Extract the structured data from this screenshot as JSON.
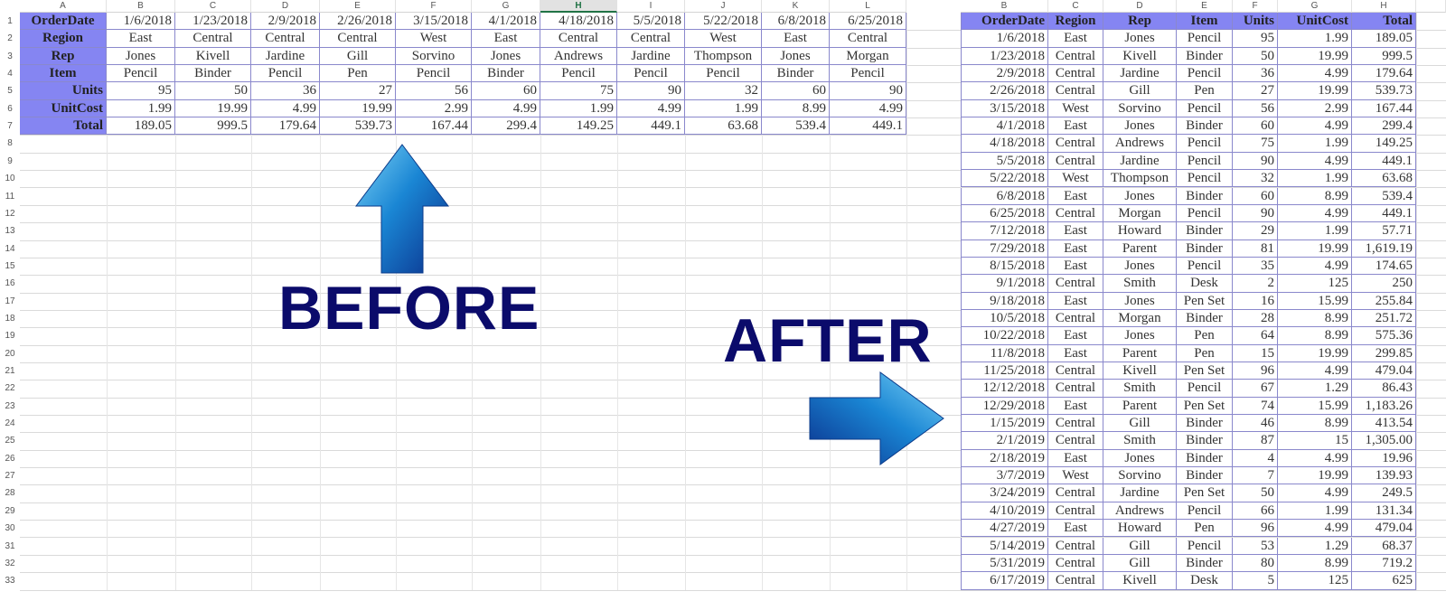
{
  "left_sheet": {
    "column_letters": [
      "A",
      "B",
      "C",
      "D",
      "E",
      "F",
      "G",
      "H",
      "I",
      "J",
      "K",
      "L"
    ],
    "selected_column": "H",
    "row_labels": [
      "OrderDate",
      "Region",
      "Rep",
      "Item",
      "Units",
      "UnitCost",
      "Total"
    ],
    "records": [
      [
        "1/6/2018",
        "East",
        "Jones",
        "Pencil",
        "95",
        "1.99",
        "189.05"
      ],
      [
        "1/23/2018",
        "Central",
        "Kivell",
        "Binder",
        "50",
        "19.99",
        "999.5"
      ],
      [
        "2/9/2018",
        "Central",
        "Jardine",
        "Pencil",
        "36",
        "4.99",
        "179.64"
      ],
      [
        "2/26/2018",
        "Central",
        "Gill",
        "Pen",
        "27",
        "19.99",
        "539.73"
      ],
      [
        "3/15/2018",
        "West",
        "Sorvino",
        "Pencil",
        "56",
        "2.99",
        "167.44"
      ],
      [
        "4/1/2018",
        "East",
        "Jones",
        "Binder",
        "60",
        "4.99",
        "299.4"
      ],
      [
        "4/18/2018",
        "Central",
        "Andrews",
        "Pencil",
        "75",
        "1.99",
        "149.25"
      ],
      [
        "5/5/2018",
        "Central",
        "Jardine",
        "Pencil",
        "90",
        "4.99",
        "449.1"
      ],
      [
        "5/22/2018",
        "West",
        "Thompson",
        "Pencil",
        "32",
        "1.99",
        "63.68"
      ],
      [
        "6/8/2018",
        "East",
        "Jones",
        "Binder",
        "60",
        "8.99",
        "539.4"
      ],
      [
        "6/25/2018",
        "Central",
        "Morgan",
        "Pencil",
        "90",
        "4.99",
        "449.1"
      ]
    ]
  },
  "right_sheet": {
    "column_letters": [
      "B",
      "C",
      "D",
      "E",
      "F",
      "G",
      "H"
    ],
    "headers": [
      "OrderDate",
      "Region",
      "Rep",
      "Item",
      "Units",
      "UnitCost",
      "Total"
    ],
    "rows": [
      [
        "1/6/2018",
        "East",
        "Jones",
        "Pencil",
        "95",
        "1.99",
        "189.05"
      ],
      [
        "1/23/2018",
        "Central",
        "Kivell",
        "Binder",
        "50",
        "19.99",
        "999.5"
      ],
      [
        "2/9/2018",
        "Central",
        "Jardine",
        "Pencil",
        "36",
        "4.99",
        "179.64"
      ],
      [
        "2/26/2018",
        "Central",
        "Gill",
        "Pen",
        "27",
        "19.99",
        "539.73"
      ],
      [
        "3/15/2018",
        "West",
        "Sorvino",
        "Pencil",
        "56",
        "2.99",
        "167.44"
      ],
      [
        "4/1/2018",
        "East",
        "Jones",
        "Binder",
        "60",
        "4.99",
        "299.4"
      ],
      [
        "4/18/2018",
        "Central",
        "Andrews",
        "Pencil",
        "75",
        "1.99",
        "149.25"
      ],
      [
        "5/5/2018",
        "Central",
        "Jardine",
        "Pencil",
        "90",
        "4.99",
        "449.1"
      ],
      [
        "5/22/2018",
        "West",
        "Thompson",
        "Pencil",
        "32",
        "1.99",
        "63.68"
      ],
      [
        "6/8/2018",
        "East",
        "Jones",
        "Binder",
        "60",
        "8.99",
        "539.4"
      ],
      [
        "6/25/2018",
        "Central",
        "Morgan",
        "Pencil",
        "90",
        "4.99",
        "449.1"
      ],
      [
        "7/12/2018",
        "East",
        "Howard",
        "Binder",
        "29",
        "1.99",
        "57.71"
      ],
      [
        "7/29/2018",
        "East",
        "Parent",
        "Binder",
        "81",
        "19.99",
        "1,619.19"
      ],
      [
        "8/15/2018",
        "East",
        "Jones",
        "Pencil",
        "35",
        "4.99",
        "174.65"
      ],
      [
        "9/1/2018",
        "Central",
        "Smith",
        "Desk",
        "2",
        "125",
        "250"
      ],
      [
        "9/18/2018",
        "East",
        "Jones",
        "Pen Set",
        "16",
        "15.99",
        "255.84"
      ],
      [
        "10/5/2018",
        "Central",
        "Morgan",
        "Binder",
        "28",
        "8.99",
        "251.72"
      ],
      [
        "10/22/2018",
        "East",
        "Jones",
        "Pen",
        "64",
        "8.99",
        "575.36"
      ],
      [
        "11/8/2018",
        "East",
        "Parent",
        "Pen",
        "15",
        "19.99",
        "299.85"
      ],
      [
        "11/25/2018",
        "Central",
        "Kivell",
        "Pen Set",
        "96",
        "4.99",
        "479.04"
      ],
      [
        "12/12/2018",
        "Central",
        "Smith",
        "Pencil",
        "67",
        "1.29",
        "86.43"
      ],
      [
        "12/29/2018",
        "East",
        "Parent",
        "Pen Set",
        "74",
        "15.99",
        "1,183.26"
      ],
      [
        "1/15/2019",
        "Central",
        "Gill",
        "Binder",
        "46",
        "8.99",
        "413.54"
      ],
      [
        "2/1/2019",
        "Central",
        "Smith",
        "Binder",
        "87",
        "15",
        "1,305.00"
      ],
      [
        "2/18/2019",
        "East",
        "Jones",
        "Binder",
        "4",
        "4.99",
        "19.96"
      ],
      [
        "3/7/2019",
        "West",
        "Sorvino",
        "Binder",
        "7",
        "19.99",
        "139.93"
      ],
      [
        "3/24/2019",
        "Central",
        "Jardine",
        "Pen Set",
        "50",
        "4.99",
        "249.5"
      ],
      [
        "4/10/2019",
        "Central",
        "Andrews",
        "Pencil",
        "66",
        "1.99",
        "131.34"
      ],
      [
        "4/27/2019",
        "East",
        "Howard",
        "Pen",
        "96",
        "4.99",
        "479.04"
      ],
      [
        "5/14/2019",
        "Central",
        "Gill",
        "Pencil",
        "53",
        "1.29",
        "68.37"
      ],
      [
        "5/31/2019",
        "Central",
        "Gill",
        "Binder",
        "80",
        "8.99",
        "719.2"
      ],
      [
        "6/17/2019",
        "Central",
        "Kivell",
        "Desk",
        "5",
        "125",
        "625"
      ]
    ]
  },
  "labels": {
    "before": "BEFORE",
    "after": "AFTER"
  },
  "icons": {
    "before_arrow": "arrow-up-icon",
    "after_arrow": "arrow-right-icon"
  },
  "colors": {
    "header_fill": "#8585f2",
    "border": "#8a88cc",
    "label_text": "#0b0b6b",
    "arrow": "#1a7fd0"
  }
}
